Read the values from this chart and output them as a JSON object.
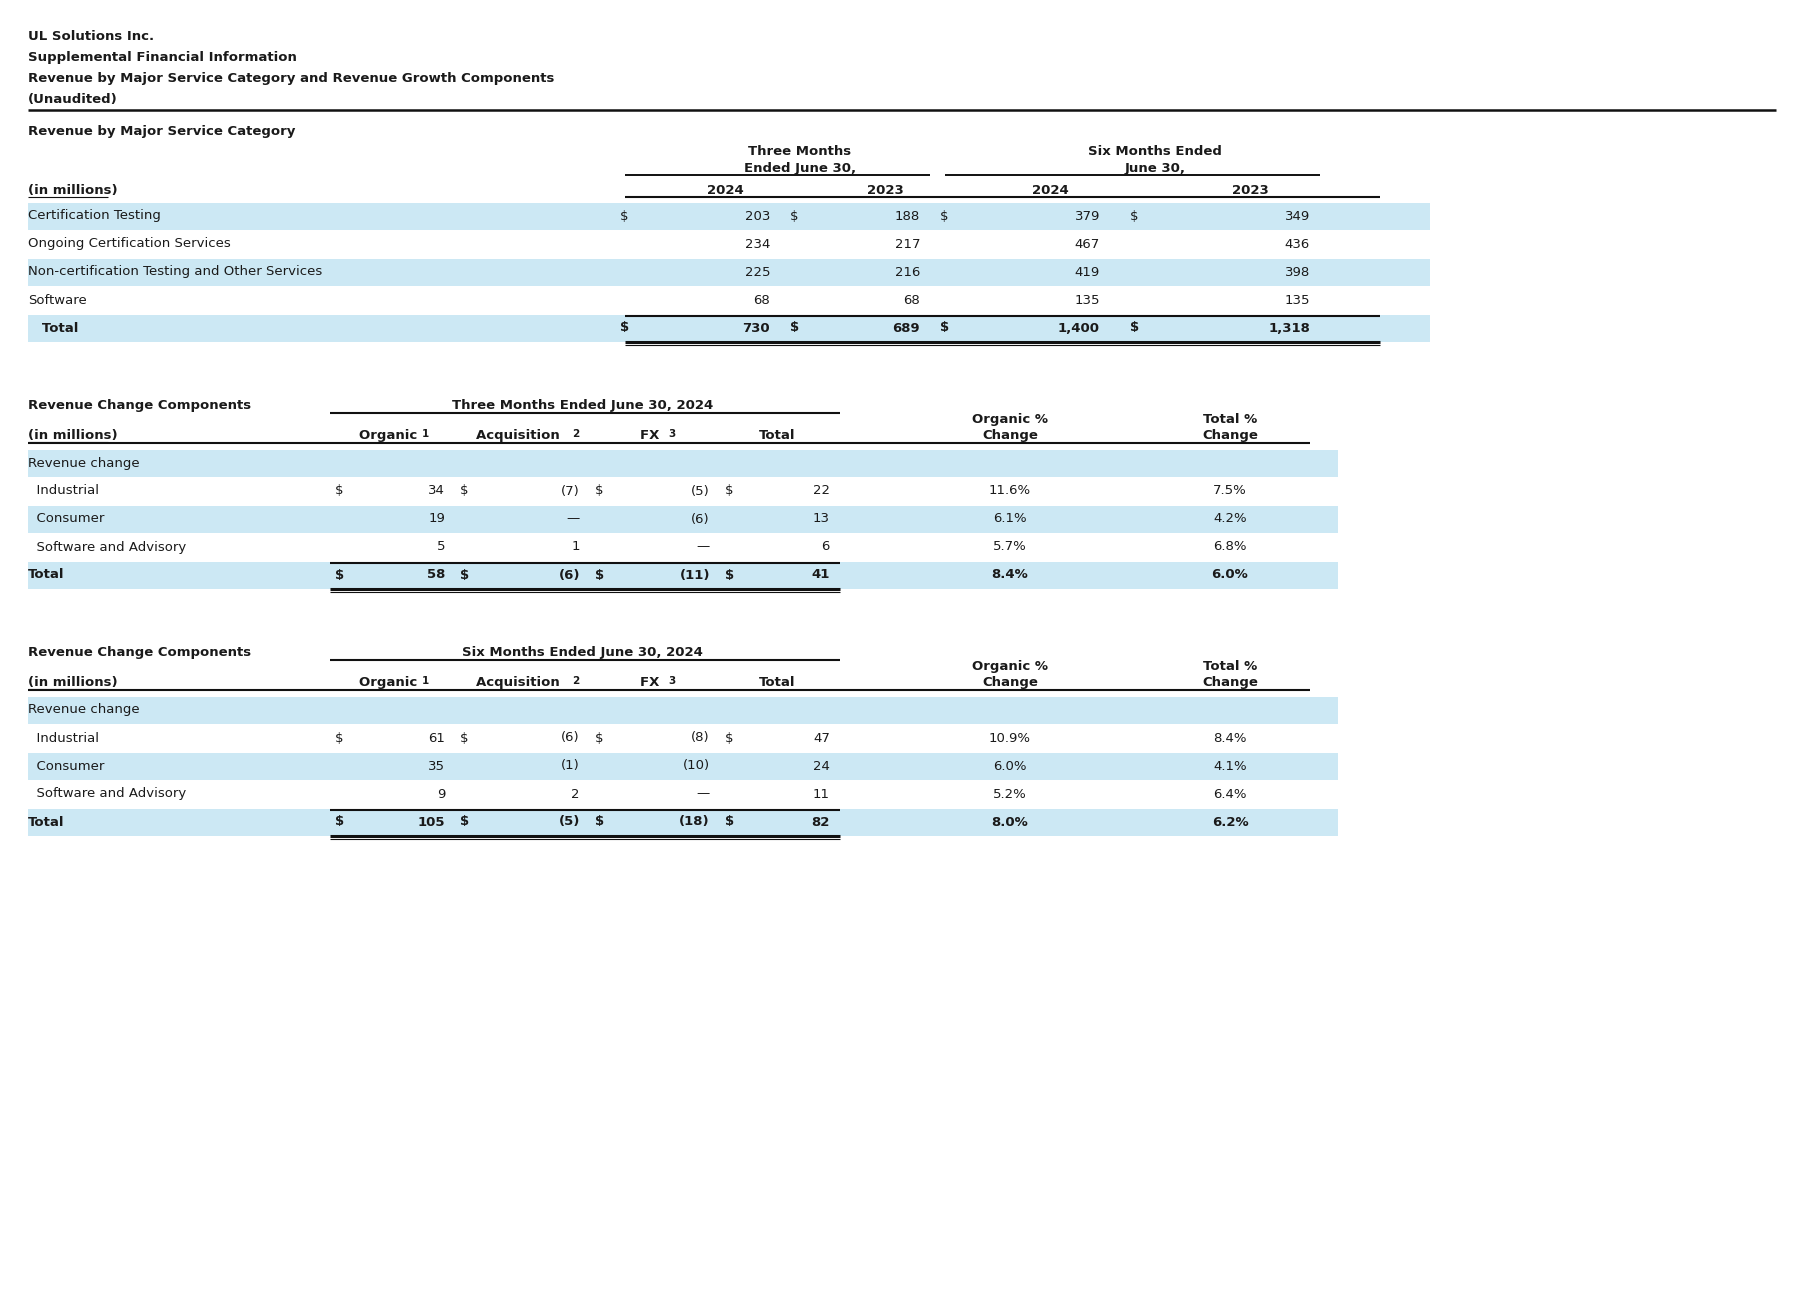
{
  "title_lines": [
    "UL Solutions Inc.",
    "Supplemental Financial Information",
    "Revenue by Major Service Category and Revenue Growth Components",
    "(Unaudited)"
  ],
  "bg_color": "#ffffff",
  "light_blue": "#cce8f4",
  "table1": {
    "section_title": "Revenue by Major Service Category",
    "subtitle": "(in millions)",
    "rows": [
      {
        "label": "Certification Testing",
        "d1": "$",
        "v1": "203",
        "d2": "$",
        "v2": "188",
        "d3": "$",
        "v3": "379",
        "d4": "$",
        "v4": "349",
        "highlight": true,
        "total": false
      },
      {
        "label": "Ongoing Certification Services",
        "d1": "",
        "v1": "234",
        "d2": "",
        "v2": "217",
        "d3": "",
        "v3": "467",
        "d4": "",
        "v4": "436",
        "highlight": false,
        "total": false
      },
      {
        "label": "Non-certification Testing and Other Services",
        "d1": "",
        "v1": "225",
        "d2": "",
        "v2": "216",
        "d3": "",
        "v3": "419",
        "d4": "",
        "v4": "398",
        "highlight": true,
        "total": false
      },
      {
        "label": "Software",
        "d1": "",
        "v1": "68",
        "d2": "",
        "v2": "68",
        "d3": "",
        "v3": "135",
        "d4": "",
        "v4": "135",
        "highlight": false,
        "total": false
      },
      {
        "label": "   Total",
        "d1": "$",
        "v1": "730",
        "d2": "$",
        "v2": "689",
        "d3": "$",
        "v3": "1,400",
        "d4": "$",
        "v4": "1,318",
        "highlight": true,
        "total": true
      }
    ]
  },
  "table2": {
    "section_title": "Revenue Change Components",
    "period": "Three Months Ended June 30, 2024",
    "subtitle": "(in millions)",
    "rows": [
      {
        "label": "Revenue change",
        "org_d": "",
        "org_v": "",
        "acq_d": "",
        "acq_v": "",
        "fx_d": "",
        "fx_v": "",
        "tot_d": "",
        "tot_v": "",
        "org_pct": "",
        "tot_pct": "",
        "highlight": true,
        "subheader": true,
        "total": false
      },
      {
        "label": "  Industrial",
        "org_d": "$",
        "org_v": "34",
        "acq_d": "$",
        "acq_v": "(7)",
        "fx_d": "$",
        "fx_v": "(5)",
        "tot_d": "$",
        "tot_v": "22",
        "org_pct": "11.6%",
        "tot_pct": "7.5%",
        "highlight": false,
        "subheader": false,
        "total": false
      },
      {
        "label": "  Consumer",
        "org_d": "",
        "org_v": "19",
        "acq_d": "",
        "acq_v": "—",
        "fx_d": "",
        "fx_v": "(6)",
        "tot_d": "",
        "tot_v": "13",
        "org_pct": "6.1%",
        "tot_pct": "4.2%",
        "highlight": true,
        "subheader": false,
        "total": false
      },
      {
        "label": "  Software and Advisory",
        "org_d": "",
        "org_v": "5",
        "acq_d": "",
        "acq_v": "1",
        "fx_d": "",
        "fx_v": "—",
        "tot_d": "",
        "tot_v": "6",
        "org_pct": "5.7%",
        "tot_pct": "6.8%",
        "highlight": false,
        "subheader": false,
        "total": false
      },
      {
        "label": "Total",
        "org_d": "$",
        "org_v": "58",
        "acq_d": "$",
        "acq_v": "(6)",
        "fx_d": "$",
        "fx_v": "(11)",
        "tot_d": "$",
        "tot_v": "41",
        "org_pct": "8.4%",
        "tot_pct": "6.0%",
        "highlight": true,
        "subheader": false,
        "total": true
      }
    ]
  },
  "table3": {
    "section_title": "Revenue Change Components",
    "period": "Six Months Ended June 30, 2024",
    "subtitle": "(in millions)",
    "rows": [
      {
        "label": "Revenue change",
        "org_d": "",
        "org_v": "",
        "acq_d": "",
        "acq_v": "",
        "fx_d": "",
        "fx_v": "",
        "tot_d": "",
        "tot_v": "",
        "org_pct": "",
        "tot_pct": "",
        "highlight": true,
        "subheader": true,
        "total": false
      },
      {
        "label": "  Industrial",
        "org_d": "$",
        "org_v": "61",
        "acq_d": "$",
        "acq_v": "(6)",
        "fx_d": "$",
        "fx_v": "(8)",
        "tot_d": "$",
        "tot_v": "47",
        "org_pct": "10.9%",
        "tot_pct": "8.4%",
        "highlight": false,
        "subheader": false,
        "total": false
      },
      {
        "label": "  Consumer",
        "org_d": "",
        "org_v": "35",
        "acq_d": "",
        "acq_v": "(1)",
        "fx_d": "",
        "fx_v": "(10)",
        "tot_d": "",
        "tot_v": "24",
        "org_pct": "6.0%",
        "tot_pct": "4.1%",
        "highlight": true,
        "subheader": false,
        "total": false
      },
      {
        "label": "  Software and Advisory",
        "org_d": "",
        "org_v": "9",
        "acq_d": "",
        "acq_v": "2",
        "fx_d": "",
        "fx_v": "—",
        "tot_d": "",
        "tot_v": "11",
        "org_pct": "5.2%",
        "tot_pct": "6.4%",
        "highlight": false,
        "subheader": false,
        "total": false
      },
      {
        "label": "Total",
        "org_d": "$",
        "org_v": "105",
        "acq_d": "$",
        "acq_v": "(5)",
        "fx_d": "$",
        "fx_v": "(18)",
        "tot_d": "$",
        "tot_v": "82",
        "org_pct": "8.0%",
        "tot_pct": "6.2%",
        "highlight": true,
        "subheader": false,
        "total": true
      }
    ]
  }
}
